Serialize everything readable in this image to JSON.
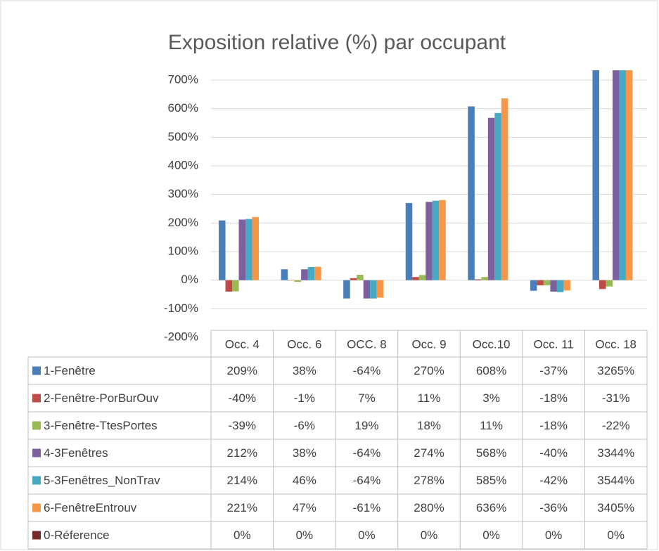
{
  "chart_data": {
    "type": "bar",
    "title": "Exposition relative (%) par occupant",
    "categories": [
      "Occ. 4",
      "Occ. 6",
      "OCC. 8",
      "Occ. 9",
      "Occ.10",
      "Occ. 11",
      "Occ. 18"
    ],
    "series": [
      {
        "name": "1-Fenêtre",
        "color": "#4a7ebb",
        "values": [
          209,
          38,
          -64,
          270,
          608,
          -37,
          3265
        ],
        "value_labels": [
          "209%",
          "38%",
          "-64%",
          "270%",
          "608%",
          "-37%",
          "3265%"
        ]
      },
      {
        "name": "2-Fenêtre-PorBurOuv",
        "color": "#be4b48",
        "values": [
          -40,
          -1,
          7,
          11,
          3,
          -18,
          -31
        ],
        "value_labels": [
          "-40%",
          "-1%",
          "7%",
          "11%",
          "3%",
          "-18%",
          "-31%"
        ]
      },
      {
        "name": "3-Fenêtre-TtesPortes",
        "color": "#98b954",
        "values": [
          -39,
          -6,
          19,
          18,
          11,
          -18,
          -22
        ],
        "value_labels": [
          "-39%",
          "-6%",
          "19%",
          "18%",
          "11%",
          "-18%",
          "-22%"
        ]
      },
      {
        "name": "4-3Fenêtres",
        "color": "#7d60a0",
        "values": [
          212,
          38,
          -64,
          274,
          568,
          -40,
          3344
        ],
        "value_labels": [
          "212%",
          "38%",
          "-64%",
          "274%",
          "568%",
          "-40%",
          "3344%"
        ]
      },
      {
        "name": "5-3Fenêtres_NonTrav",
        "color": "#46aac5",
        "values": [
          214,
          46,
          -64,
          278,
          585,
          -42,
          3544
        ],
        "value_labels": [
          "214%",
          "46%",
          "-64%",
          "278%",
          "585%",
          "-42%",
          "3544%"
        ]
      },
      {
        "name": "6-FenêtreEntrouv",
        "color": "#f79646",
        "values": [
          221,
          47,
          -61,
          280,
          636,
          -36,
          3405
        ],
        "value_labels": [
          "221%",
          "47%",
          "-61%",
          "280%",
          "636%",
          "-36%",
          "3405%"
        ]
      },
      {
        "name": "0-Réference",
        "color": "#772c2a",
        "values": [
          0,
          0,
          0,
          0,
          0,
          0,
          0
        ],
        "value_labels": [
          "0%",
          "0%",
          "0%",
          "0%",
          "0%",
          "0%",
          "0%"
        ]
      }
    ],
    "ylim": [
      -200,
      700
    ],
    "yticks": [
      {
        "value": -200,
        "label": "-200%"
      },
      {
        "value": -100,
        "label": "-100%"
      },
      {
        "value": 0,
        "label": "0%"
      },
      {
        "value": 100,
        "label": "100%"
      },
      {
        "value": 200,
        "label": "200%"
      },
      {
        "value": 300,
        "label": "300%"
      },
      {
        "value": 400,
        "label": "400%"
      },
      {
        "value": 500,
        "label": "500%"
      },
      {
        "value": 600,
        "label": "600%"
      },
      {
        "value": 700,
        "label": "700%"
      }
    ],
    "grid": true
  }
}
